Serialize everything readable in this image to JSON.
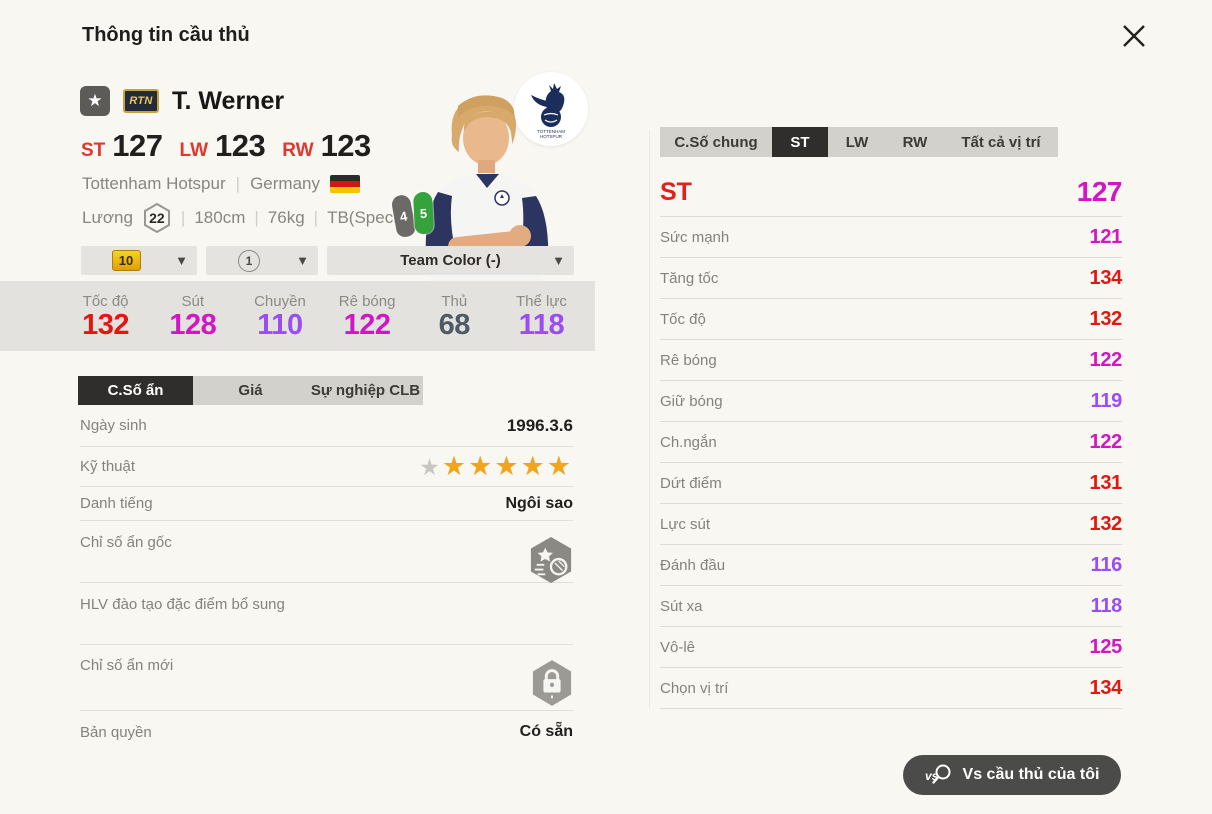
{
  "window": {
    "title": "Thông tin cầu thủ"
  },
  "icons": {
    "star": "★",
    "dropdown_arrow": "▼"
  },
  "player": {
    "badge": "RTN",
    "name": "T. Werner",
    "position_ratings": [
      {
        "pos": "ST",
        "value": "127"
      },
      {
        "pos": "LW",
        "value": "123"
      },
      {
        "pos": "RW",
        "value": "123"
      }
    ],
    "club": "Tottenham Hotspur",
    "nation": "Germany",
    "salary_label": "Lương",
    "salary": "22",
    "height": "180cm",
    "weight": "76kg",
    "body_type": "TB(Special)",
    "boots": [
      {
        "value": "4",
        "color": "#6b6a66"
      },
      {
        "value": "5",
        "color": "#35a23c"
      }
    ]
  },
  "dropdowns": [
    {
      "value": "10"
    },
    {
      "value": "1"
    },
    {
      "value": "Team Color (-)"
    }
  ],
  "quick_stats": [
    {
      "label": "Tốc độ",
      "value": "132",
      "color": "red"
    },
    {
      "label": "Sút",
      "value": "128",
      "color": "magenta"
    },
    {
      "label": "Chuyền",
      "value": "110",
      "color": "purple"
    },
    {
      "label": "Rê bóng",
      "value": "122",
      "color": "magenta"
    },
    {
      "label": "Thủ",
      "value": "68",
      "color": "dark"
    },
    {
      "label": "Thể lực",
      "value": "118",
      "color": "purple"
    }
  ],
  "left_tabs": [
    {
      "label": "C.Số ẩn",
      "active": true
    },
    {
      "label": "Giá",
      "active": false
    },
    {
      "label": "Sự nghiệp CLB",
      "active": false
    }
  ],
  "details": {
    "birth_label": "Ngày sinh",
    "birth_value": "1996.3.6",
    "skill_label": "Kỹ thuật",
    "skill_stars": {
      "gray": 1,
      "gold": 5
    },
    "fame_label": "Danh tiếng",
    "fame_value": "Ngôi sao",
    "hidden_origin_label": "Chỉ số ẩn gốc",
    "coach_label": "HLV đào tạo đặc điểm bổ sung",
    "hidden_new_label": "Chỉ số ẩn mới",
    "license_label": "Bản quyền",
    "license_value": "Có sẵn"
  },
  "right_tabs": [
    {
      "label": "C.Số chung",
      "active": false
    },
    {
      "label": "ST",
      "active": true
    },
    {
      "label": "LW",
      "active": false
    },
    {
      "label": "RW",
      "active": false
    },
    {
      "label": "Tất cả vị trí",
      "active": false
    }
  ],
  "position_stats": {
    "header": {
      "label": "ST",
      "value": "127",
      "color": "magenta"
    },
    "rows": [
      {
        "label": "Sức mạnh",
        "value": "121",
        "color": "magenta"
      },
      {
        "label": "Tăng tốc",
        "value": "134",
        "color": "red"
      },
      {
        "label": "Tốc độ",
        "value": "132",
        "color": "red"
      },
      {
        "label": "Rê bóng",
        "value": "122",
        "color": "magenta"
      },
      {
        "label": "Giữ bóng",
        "value": "119",
        "color": "purple"
      },
      {
        "label": "Ch.ngắn",
        "value": "122",
        "color": "magenta"
      },
      {
        "label": "Dứt điểm",
        "value": "131",
        "color": "red"
      },
      {
        "label": "Lực sút",
        "value": "132",
        "color": "red"
      },
      {
        "label": "Đánh đầu",
        "value": "116",
        "color": "purple"
      },
      {
        "label": "Sút xa",
        "value": "118",
        "color": "purple"
      },
      {
        "label": "Vô-lê",
        "value": "125",
        "color": "magenta"
      },
      {
        "label": "Chọn vị trí",
        "value": "134",
        "color": "red"
      }
    ]
  },
  "compare_button": {
    "label": "Vs cầu thủ của tôi"
  },
  "colors": {
    "red": "#e11712",
    "magenta": "#d315c6",
    "purple": "#9a4cf5",
    "dark_stat": "#4e5a64",
    "gold_star": "#f2a51a",
    "accent_dark": "#2f2e2c",
    "background": "#f8f7f1",
    "band": "#e3e2de"
  }
}
